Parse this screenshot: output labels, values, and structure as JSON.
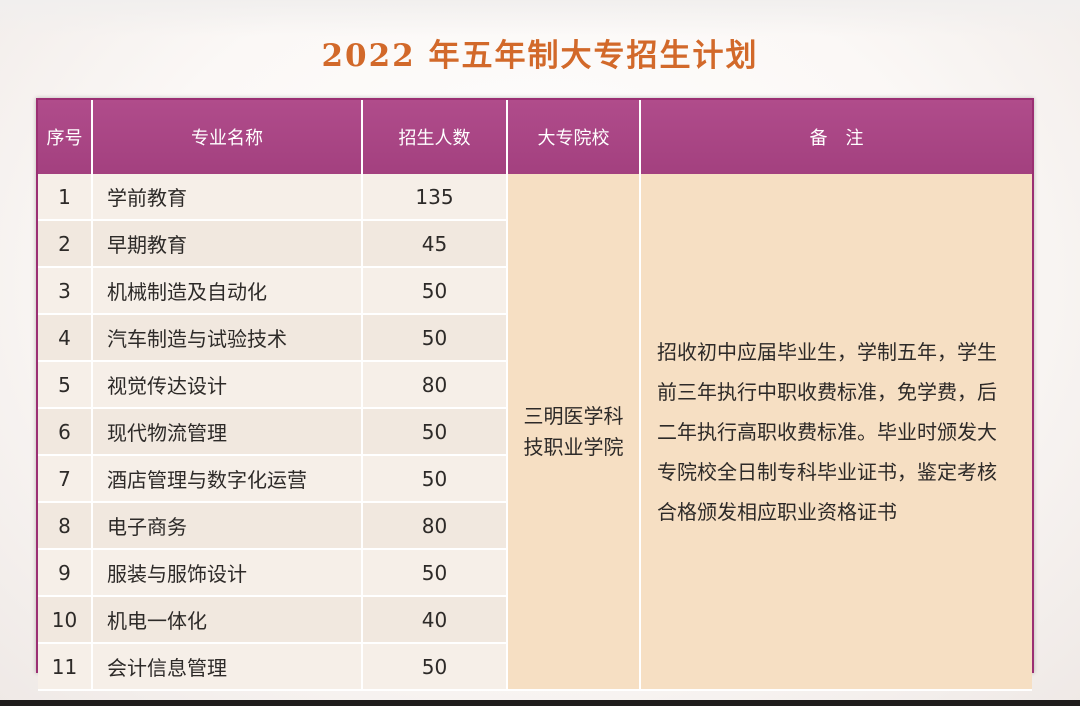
{
  "title": "2022 年五年制大专招生计划",
  "headers": {
    "no": "序号",
    "major": "专业名称",
    "count": "招生人数",
    "school": "大专院校",
    "note": "备　注"
  },
  "rows": [
    {
      "no": "1",
      "major": "学前教育",
      "count": "135"
    },
    {
      "no": "2",
      "major": "早期教育",
      "count": "45"
    },
    {
      "no": "3",
      "major": "机械制造及自动化",
      "count": "50"
    },
    {
      "no": "4",
      "major": "汽车制造与试验技术",
      "count": "50"
    },
    {
      "no": "5",
      "major": "视觉传达设计",
      "count": "80"
    },
    {
      "no": "6",
      "major": "现代物流管理",
      "count": "50"
    },
    {
      "no": "7",
      "major": "酒店管理与数字化运营",
      "count": "50"
    },
    {
      "no": "8",
      "major": "电子商务",
      "count": "80"
    },
    {
      "no": "9",
      "major": "服装与服饰设计",
      "count": "50"
    },
    {
      "no": "10",
      "major": "机电一体化",
      "count": "40"
    },
    {
      "no": "11",
      "major": "会计信息管理",
      "count": "50"
    }
  ],
  "school": "三明医学科技职业学院",
  "note": "招收初中应届毕业生，学制五年，学生前三年执行中职收费标准，免学费，后二年执行高职收费标准。毕业时颁发大专院校全日制专科毕业证书，鉴定考核合格颁发相应职业资格证书"
}
